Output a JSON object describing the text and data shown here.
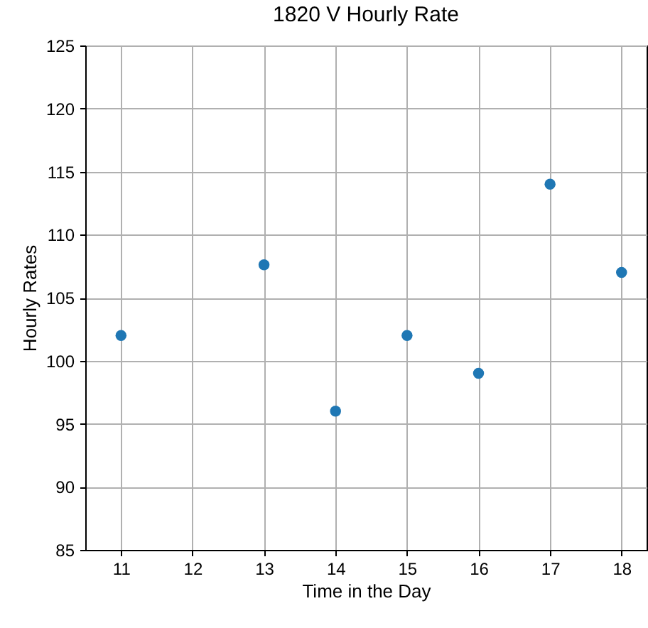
{
  "chart_data": {
    "type": "scatter",
    "title": "1820 V Hourly Rate",
    "xlabel": "Time in the Day",
    "ylabel": "Hourly Rates",
    "x": [
      11,
      13,
      14,
      15,
      16,
      17,
      18
    ],
    "series": [
      {
        "color": "#1f77b4",
        "values": [
          102,
          107.6,
          96,
          102,
          99,
          114,
          107
        ]
      }
    ],
    "xlim": [
      10.5,
      18.35
    ],
    "xticks": [
      11,
      12,
      13,
      14,
      15,
      16,
      17,
      18
    ],
    "ylim": [
      85,
      125
    ],
    "yticks": [
      85,
      90,
      95,
      100,
      105,
      110,
      115,
      120,
      125
    ],
    "grid": true,
    "marker": "circle"
  }
}
